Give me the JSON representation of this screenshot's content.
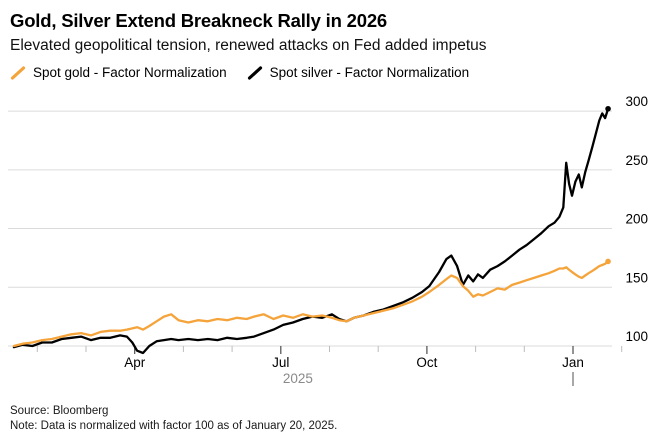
{
  "header": {
    "title": "Gold, Silver Extend Breakneck Rally in 2026",
    "subtitle": "Elevated geopolitical tension, renewed attacks on Fed added impetus"
  },
  "legend": {
    "items": [
      {
        "label": "Spot gold - Factor Normalization",
        "color": "#F5A43B"
      },
      {
        "label": "Spot silver - Factor Normalization",
        "color": "#000000"
      }
    ]
  },
  "footer": {
    "source": "Source: Bloomberg",
    "note": "Note: Data is normalized with factor 100 as of January 20, 2025."
  },
  "chart_data": {
    "type": "line",
    "title": "Gold, Silver Extend Breakneck Rally in 2026",
    "subtitle": "Elevated geopolitical tension, renewed attacks on Fed added impetus",
    "x_unit": "months_since_2025-01-01",
    "x_range_note": "data runs ~Jan 20, 2025 to ~Jan 20, 2026, normalized to 100 at start",
    "ylim": [
      90,
      312
    ],
    "grid": true,
    "legend_position": "top",
    "x": [
      0.52,
      0.7,
      0.9,
      1.1,
      1.3,
      1.5,
      1.7,
      1.9,
      2.1,
      2.3,
      2.5,
      2.7,
      2.84,
      2.95,
      3.05,
      3.17,
      3.3,
      3.45,
      3.6,
      3.75,
      3.9,
      4.1,
      4.3,
      4.5,
      4.7,
      4.9,
      5.1,
      5.3,
      5.45,
      5.65,
      5.85,
      6.05,
      6.25,
      6.45,
      6.65,
      6.85,
      7.05,
      7.2,
      7.35,
      7.5,
      7.7,
      7.9,
      8.1,
      8.3,
      8.5,
      8.7,
      8.9,
      9.05,
      9.25,
      9.4,
      9.5,
      9.62,
      9.74,
      9.85,
      9.95,
      10.05,
      10.15,
      10.3,
      10.45,
      10.6,
      10.75,
      10.9,
      11.05,
      11.2,
      11.35,
      11.5,
      11.62,
      11.72,
      11.8,
      11.86,
      11.92,
      11.98,
      12.05,
      12.12,
      12.18,
      12.25,
      12.32,
      12.4,
      12.47,
      12.54,
      12.6,
      12.66,
      12.72
    ],
    "series": [
      {
        "name": "Spot gold - Factor Normalization",
        "color": "#F5A43B",
        "values": [
          100,
          102,
          103,
          105,
          106,
          108,
          110,
          111,
          109,
          112,
          113,
          113,
          114,
          115,
          116,
          114,
          117,
          121,
          125,
          127,
          122,
          120,
          122,
          121,
          123,
          122,
          124,
          123,
          125,
          127,
          123,
          126,
          124,
          127,
          125,
          126,
          124,
          122,
          121,
          124,
          126,
          128,
          130,
          132,
          135,
          138,
          142,
          146,
          152,
          157,
          160,
          158,
          151,
          147,
          142,
          144,
          143,
          146,
          149,
          148,
          152,
          154,
          156,
          158,
          160,
          162,
          164,
          166,
          166,
          167,
          165,
          163,
          161,
          159,
          158,
          160,
          162,
          164,
          166,
          168,
          169,
          170,
          172
        ]
      },
      {
        "name": "Spot silver - Factor Normalization",
        "color": "#000000",
        "values": [
          99,
          101,
          100,
          103,
          103,
          106,
          107,
          108,
          105,
          107,
          107,
          109,
          108,
          103,
          96,
          94,
          100,
          104,
          105,
          106,
          105,
          106,
          105,
          106,
          105,
          107,
          106,
          107,
          108,
          111,
          114,
          118,
          120,
          123,
          125,
          124,
          127,
          123,
          121,
          124,
          126,
          129,
          131,
          134,
          137,
          141,
          146,
          151,
          163,
          174,
          177,
          168,
          152,
          160,
          155,
          161,
          158,
          165,
          168,
          172,
          177,
          182,
          186,
          191,
          196,
          202,
          205,
          210,
          218,
          256,
          238,
          228,
          240,
          246,
          235,
          248,
          258,
          270,
          281,
          292,
          298,
          294,
          302
        ]
      }
    ],
    "y_axis": {
      "side": "right",
      "ticks": [
        100,
        150,
        200,
        250,
        300
      ]
    },
    "x_axis": {
      "major_ticks": [
        {
          "m": 3,
          "label": "Apr"
        },
        {
          "m": 6,
          "label": "Jul"
        },
        {
          "m": 9,
          "label": "Oct"
        },
        {
          "m": 12,
          "label": "Jan"
        }
      ],
      "minor_ticks_m": [
        1,
        2,
        4,
        5,
        7,
        8,
        10,
        11,
        13
      ],
      "year_label": {
        "text": "2025",
        "m": 6.35
      },
      "year_divider_m": 12
    },
    "end_values": {
      "gold": 172,
      "silver": 302
    }
  }
}
